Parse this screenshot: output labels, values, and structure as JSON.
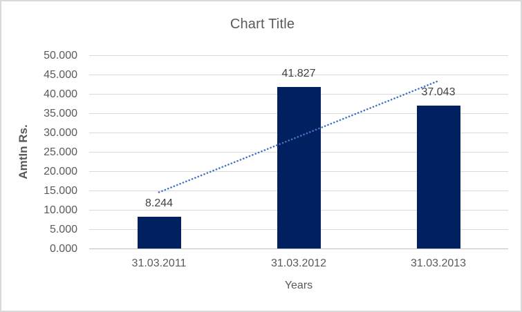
{
  "chart": {
    "title": "Chart Title",
    "y_axis_title": "AmtIn Rs.",
    "x_axis_title": "Years"
  },
  "chart_data": {
    "type": "bar",
    "title": "Chart Title",
    "xlabel": "Years",
    "ylabel": "AmtIn Rs.",
    "categories": [
      "31.03.2011",
      "31.03.2012",
      "31.03.2013"
    ],
    "values": [
      8.244,
      41.827,
      37.043
    ],
    "data_labels": [
      "8.244",
      "41.827",
      "37.043"
    ],
    "ylim": [
      0,
      50
    ],
    "ytick_step": 5,
    "ytick_labels": [
      "0.000",
      "5.000",
      "10.000",
      "15.000",
      "20.000",
      "25.000",
      "30.000",
      "35.000",
      "40.000",
      "45.000",
      "50.000"
    ],
    "grid": true,
    "legend": "none",
    "number_format_note": "dot used as thousands separator (values in Rs. thousands)",
    "trendline": {
      "type": "linear",
      "style": "dotted",
      "start_category_index": 0,
      "end_category_index": 2,
      "start_value": 14.64,
      "end_value": 43.44
    },
    "colors": {
      "bar": "#002060",
      "trendline": "#4472C4",
      "gridline": "#D9D9D9",
      "axis_line": "#BFBFBF",
      "title_text": "#595959",
      "tick_text": "#595959",
      "data_label_text": "#404040",
      "frame_border": "#D9D9D9",
      "background": "#FFFFFF"
    }
  }
}
